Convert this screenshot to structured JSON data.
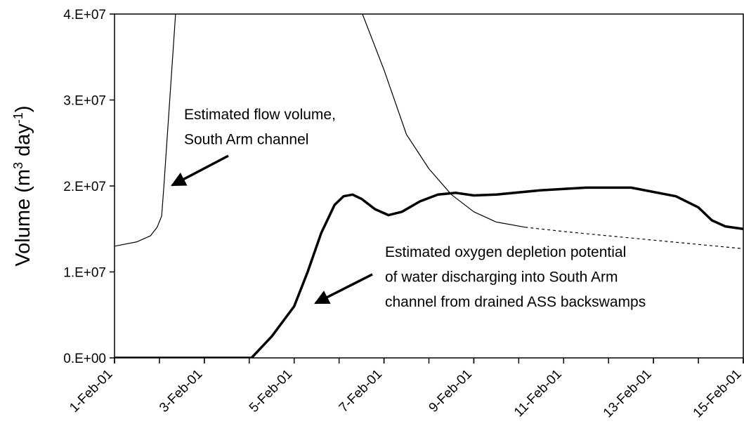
{
  "chart_data": {
    "type": "line",
    "y_label": [
      "Volume (m",
      "3",
      " day",
      "-1",
      ")"
    ],
    "annotations": [
      [
        "Estimated flow volume,",
        "South Arm channel"
      ],
      [
        "Estimated oxygen depletion potential",
        "of water discharging into South Arm",
        "channel from drained ASS backswamps"
      ]
    ],
    "xlim": [
      1,
      15
    ],
    "xticks": [
      {
        "value": 1,
        "label": "1-Feb-01"
      },
      {
        "value": 3,
        "label": "3-Feb-01"
      },
      {
        "value": 5,
        "label": "5-Feb-01"
      },
      {
        "value": 7,
        "label": "7-Feb-01"
      },
      {
        "value": 9,
        "label": "9-Feb-01"
      },
      {
        "value": 11,
        "label": "11-Feb-01"
      },
      {
        "value": 13,
        "label": "13-Feb-01"
      },
      {
        "value": 15,
        "label": "15-Feb-01"
      }
    ],
    "ylim": [
      0,
      40000000
    ],
    "yticks": [
      {
        "value": 0,
        "label": "0.E+00"
      },
      {
        "value": 10000000,
        "label": "1.E+07"
      },
      {
        "value": 20000000,
        "label": "2.E+07"
      },
      {
        "value": 30000000,
        "label": "3.E+07"
      },
      {
        "value": 40000000,
        "label": "4.E+07"
      }
    ],
    "series": [
      {
        "color": "#000000",
        "width": 1.2,
        "dash": false,
        "x": [
          1,
          1.5,
          1.8,
          1.95,
          2.05,
          2.1,
          2.36,
          null,
          6.52,
          7.0,
          7.5,
          8.0,
          8.5,
          9.0,
          9.5,
          10.14
        ],
        "values": [
          13000000,
          13500000,
          14200000,
          15200000,
          16500000,
          20000000,
          40000000,
          null,
          40000000,
          33500000,
          26000000,
          22000000,
          19000000,
          17000000,
          15800000,
          15200000
        ]
      },
      {
        "color": "#000000",
        "width": 1.2,
        "dash": true,
        "x": [
          10.14,
          11,
          12,
          13,
          14,
          15
        ],
        "values": [
          15200000,
          14700000,
          14200000,
          13700000,
          13200000,
          12700000
        ]
      },
      {
        "color": "#000000",
        "width": 3.5,
        "dash": false,
        "x": [
          1,
          4.05,
          4.5,
          5.0,
          5.3,
          5.6,
          5.9,
          6.1,
          6.3,
          6.5,
          6.8,
          7.1,
          7.4,
          7.8,
          8.2,
          8.6,
          9.0,
          9.5,
          10.5,
          11.5,
          12.5,
          13.5,
          14.0,
          14.3,
          14.6,
          15
        ],
        "values": [
          0,
          0,
          2500000,
          6000000,
          10000000,
          14500000,
          17800000,
          18800000,
          19000000,
          18500000,
          17300000,
          16600000,
          17000000,
          18200000,
          19000000,
          19200000,
          18900000,
          19000000,
          19500000,
          19800000,
          19800000,
          18800000,
          17500000,
          16000000,
          15300000,
          15000000
        ]
      }
    ]
  }
}
